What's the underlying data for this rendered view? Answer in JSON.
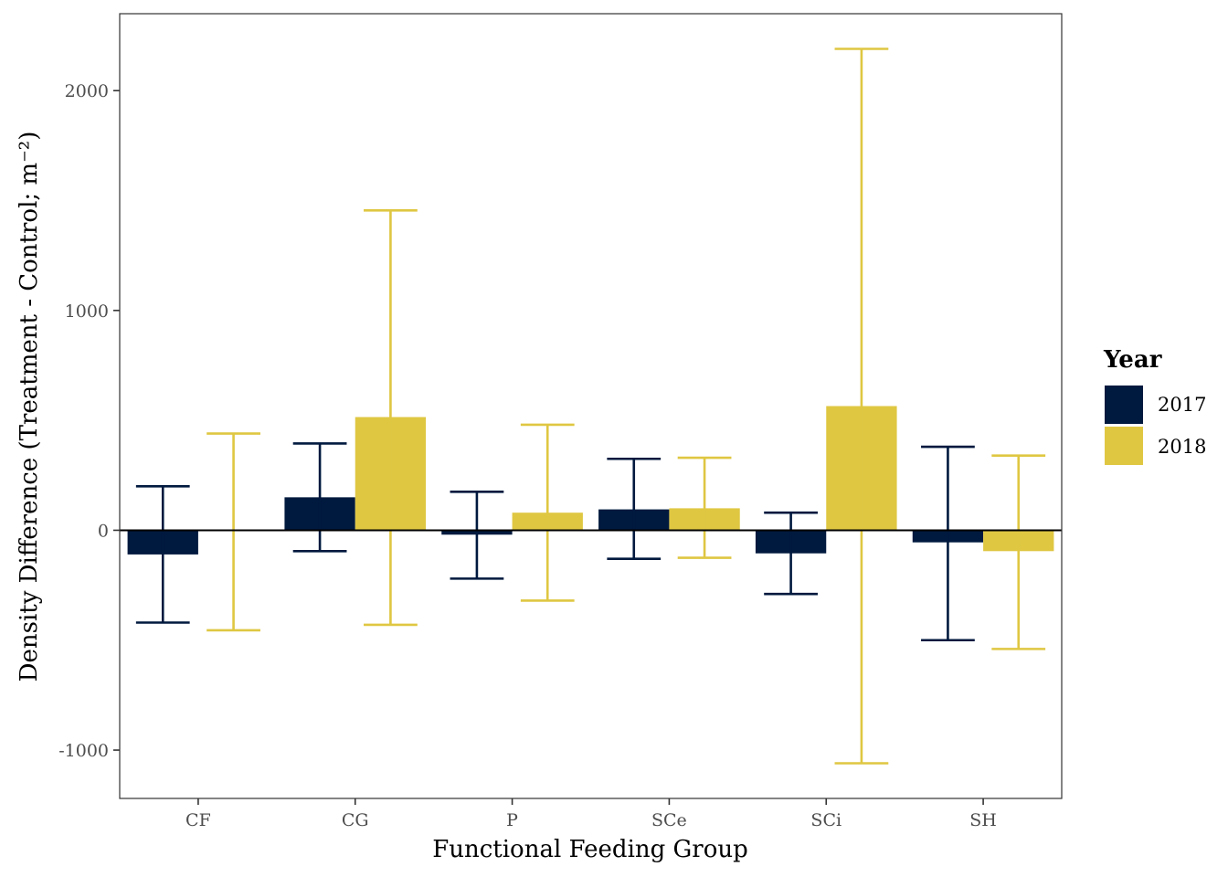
{
  "chart_data": {
    "type": "bar",
    "xlabel": "Functional Feeding Group",
    "ylabel": "Density Difference (Treatment - Control; m⁻²)",
    "ylim": [
      -1220,
      2350
    ],
    "yticks": [
      -1000,
      0,
      1000,
      2000
    ],
    "ytick_labels": [
      "-1000",
      "0",
      "1000",
      "2000"
    ],
    "categories": [
      "CF",
      "CG",
      "P",
      "SCe",
      "SCi",
      "SH"
    ],
    "grid": false,
    "legend": {
      "title": "Year",
      "position": "right"
    },
    "reference_line": 0,
    "series": [
      {
        "name": "2017",
        "color": "#00193e",
        "values": [
          -110,
          150,
          -20,
          95,
          -105,
          -55
        ],
        "error_low": [
          -420,
          -95,
          -220,
          -130,
          -290,
          -500
        ],
        "error_high": [
          200,
          395,
          175,
          325,
          80,
          380
        ]
      },
      {
        "name": "2018",
        "color": "#dfc742",
        "values": [
          0,
          515,
          80,
          100,
          565,
          -95
        ],
        "error_low": [
          -455,
          -430,
          -320,
          -125,
          -1060,
          -540
        ],
        "error_high": [
          440,
          1455,
          480,
          330,
          2190,
          340
        ]
      }
    ]
  }
}
